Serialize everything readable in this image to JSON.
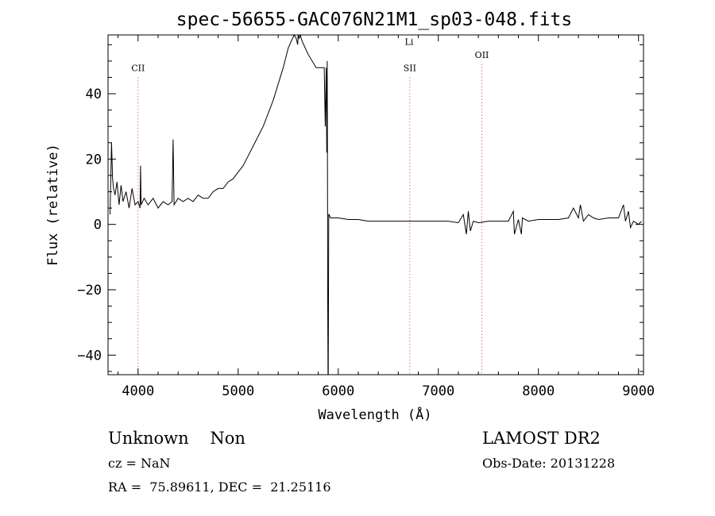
{
  "chart_data": {
    "type": "line",
    "title": "spec-56655-GAC076N21M1_sp03-048.fits",
    "xlabel": "Wavelength (Å)",
    "ylabel": "Flux (relative)",
    "xlim": [
      3700,
      9050
    ],
    "ylim": [
      -46,
      58
    ],
    "xticks": [
      4000,
      5000,
      6000,
      7000,
      8000,
      9000
    ],
    "yticks": [
      -40,
      -20,
      0,
      20,
      40
    ],
    "xtick_labels": [
      "4000",
      "5000",
      "6000",
      "7000",
      "8000",
      "9000"
    ],
    "ytick_labels": [
      "−40",
      "−20",
      "0",
      "20",
      "40"
    ],
    "grid": false,
    "line_color": "#000000",
    "marker_color": "#cc3333",
    "lines": [
      {
        "label": "CII",
        "x": 4000,
        "label_y": 47
      },
      {
        "label": "SII",
        "x": 6715,
        "label_y": 47
      },
      {
        "label": "Li",
        "x": 6708,
        "label_y": 55
      },
      {
        "label": "OII",
        "x": 7435,
        "label_y": 51
      }
    ],
    "series": [
      {
        "x": [
          3720,
          3735,
          3745,
          3755,
          3770,
          3790,
          3810,
          3830,
          3850,
          3880,
          3910,
          3940,
          3970,
          4000,
          4020,
          4025,
          4030,
          4060,
          4100,
          4150,
          4200,
          4250,
          4300,
          4340,
          4350,
          4360,
          4400,
          4450,
          4500,
          4550,
          4600,
          4650,
          4700,
          4750,
          4800,
          4850,
          4900,
          4950,
          5000,
          5050,
          5100,
          5150,
          5200,
          5250,
          5300,
          5350,
          5400,
          5450,
          5500,
          5530,
          5560,
          5580,
          5595,
          5600,
          5610,
          5620,
          5640,
          5700,
          5780,
          5860,
          5870,
          5880,
          5885,
          5890,
          5893,
          5895,
          5898,
          5900,
          5905,
          5910,
          5920,
          5950,
          6000,
          6100,
          6200,
          6300,
          6400,
          6500,
          6600,
          6700,
          6800,
          6900,
          7000,
          7100,
          7200,
          7250,
          7280,
          7300,
          7320,
          7350,
          7400,
          7500,
          7600,
          7700,
          7750,
          7760,
          7800,
          7830,
          7840,
          7900,
          8000,
          8100,
          8200,
          8300,
          8350,
          8400,
          8420,
          8450,
          8500,
          8550,
          8600,
          8700,
          8800,
          8850,
          8870,
          8900,
          8920,
          8950,
          9000,
          9030
        ],
        "y": [
          3,
          25,
          14,
          11,
          9,
          13,
          6,
          12,
          7,
          10,
          5,
          11,
          6,
          7,
          5,
          18,
          6,
          8,
          6,
          8,
          5,
          7,
          6,
          7,
          26,
          6,
          8,
          7,
          8,
          7,
          9,
          8,
          8,
          10,
          11,
          11,
          13,
          14,
          16,
          18,
          21,
          24,
          27,
          30,
          34,
          38,
          43,
          48,
          54,
          56,
          58,
          57,
          55,
          58,
          57,
          58,
          56,
          52,
          48,
          48,
          30,
          48,
          22,
          50,
          8,
          -22,
          -48,
          -48,
          3,
          3,
          2,
          2,
          2,
          1.5,
          1.5,
          1,
          1,
          1,
          1,
          1,
          1,
          1,
          1,
          1,
          0.5,
          3,
          -3,
          4,
          -2,
          1,
          0.5,
          1,
          1,
          1,
          4,
          -3,
          1.5,
          -3,
          2,
          1,
          1.5,
          1.5,
          1.5,
          2,
          5,
          2,
          6,
          1,
          3,
          2,
          1.5,
          2,
          2,
          6,
          1,
          4,
          -1,
          1,
          0,
          1
        ]
      }
    ]
  },
  "info": {
    "class_text": "Unknown    Non",
    "survey": "LAMOST DR2",
    "cz": "cz = NaN",
    "obs_date": "Obs-Date: 20131228",
    "coords": "RA =  75.89611, DEC =  21.25116"
  }
}
